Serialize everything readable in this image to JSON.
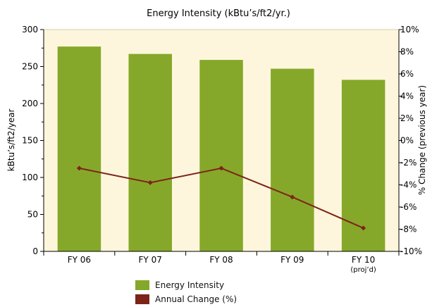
{
  "chart_data": {
    "type": "bar",
    "title": "Energy Intensity (kBtu’s/ft2/yr.)",
    "categories": [
      "FY 06",
      "FY 07",
      "FY 08",
      "FY 09",
      "FY 10"
    ],
    "category_sublabels": [
      "",
      "",
      "",
      "",
      "(proj’d)"
    ],
    "ylabel": "kBtu’s/ft2/year",
    "ylim": [
      0,
      300
    ],
    "yticks": [
      0,
      50,
      100,
      150,
      200,
      250,
      300
    ],
    "y2label": "% Change (previous year)",
    "y2lim": [
      -10,
      10
    ],
    "y2ticks": [
      "-10%",
      "-8%",
      "-6%",
      "-4%",
      "-2%",
      "0%",
      "2%",
      "4%",
      "6%",
      "8%",
      "10%"
    ],
    "y2tick_values": [
      -10,
      -8,
      -6,
      -4,
      -2,
      0,
      2,
      4,
      6,
      8,
      10
    ],
    "grid": false,
    "legend_position": "bottom",
    "series": [
      {
        "name": "Energy Intensity",
        "type": "bar",
        "axis": "left",
        "values": [
          277,
          267,
          259,
          247,
          232
        ],
        "color": "#86a82a"
      },
      {
        "name": "Annual Change (%)",
        "type": "line",
        "axis": "right",
        "values": [
          -2.5,
          -3.8,
          -2.5,
          -5.1,
          -7.9
        ],
        "color": "#7d2418"
      }
    ],
    "plot_background": "#fdf6dc"
  }
}
